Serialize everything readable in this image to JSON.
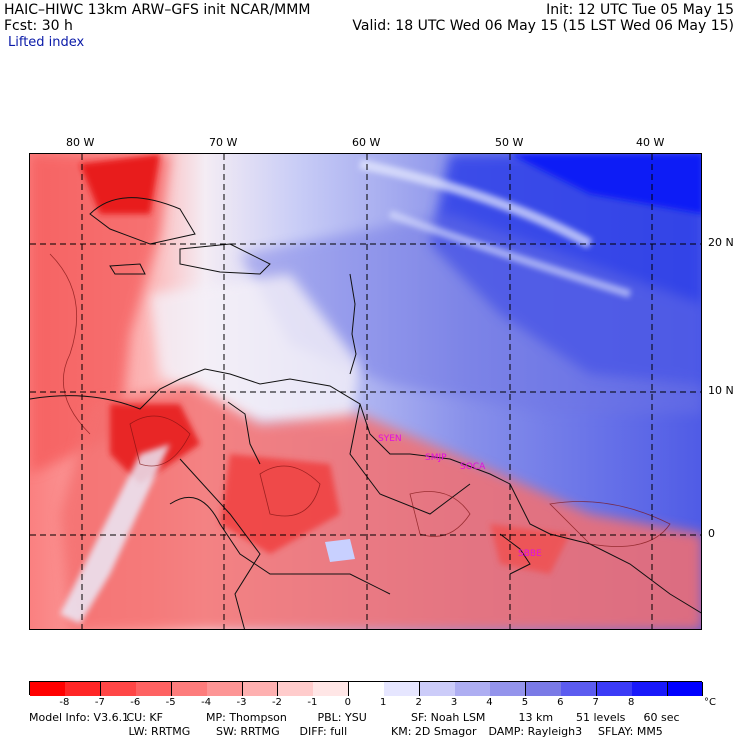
{
  "header": {
    "title": "HAIC–HIWC 13km ARW–GFS init   NCAR/MMM",
    "forecast": "Fcst:   30 h",
    "field": "Lifted index",
    "init": "Init: 12 UTC Tue 05 May 15",
    "valid": "Valid: 18 UTC Wed 06 May 15 (15 LST Wed 06 May 15)"
  },
  "map": {
    "lon_labels": [
      "80 W",
      "70 W",
      "60 W",
      "50 W",
      "40 W"
    ],
    "lat_labels": [
      "20 N",
      "10 N",
      "0"
    ],
    "stations": [
      "SYEN",
      "SMJP",
      "SOCA",
      "SBBE"
    ],
    "station_color": "#e010e0"
  },
  "colorbar": {
    "ticks": [
      "-8",
      "-7",
      "-6",
      "-5",
      "-4",
      "-3",
      "-2",
      "-1",
      "0",
      "1",
      "2",
      "3",
      "4",
      "5",
      "6",
      "7",
      "8"
    ],
    "unit": "°C",
    "colors": [
      "#ff0000",
      "#ff2626",
      "#ff4646",
      "#fe6262",
      "#fd7c7c",
      "#fd9595",
      "#feb0b0",
      "#ffcccc",
      "#ffe6e6",
      "#ffffff",
      "#e6e6ff",
      "#ccccf9",
      "#aeaef2",
      "#9494ec",
      "#7a7ae6",
      "#5c5cf0",
      "#3b3bf6",
      "#1919fa",
      "#0000ff"
    ]
  },
  "model_info": {
    "line1": [
      "Model Info: V3.6.1",
      "CU: KF",
      "MP: Thompson",
      "PBL: YSU",
      "SF: Noah LSM",
      "13 km",
      "51 levels",
      "60 sec"
    ],
    "line2": [
      "LW: RRTMG",
      "SW: RRTMG",
      "DIFF: full",
      "KM: 2D Smagor",
      "DAMP: Rayleigh3",
      "SFLAY: MM5"
    ]
  }
}
